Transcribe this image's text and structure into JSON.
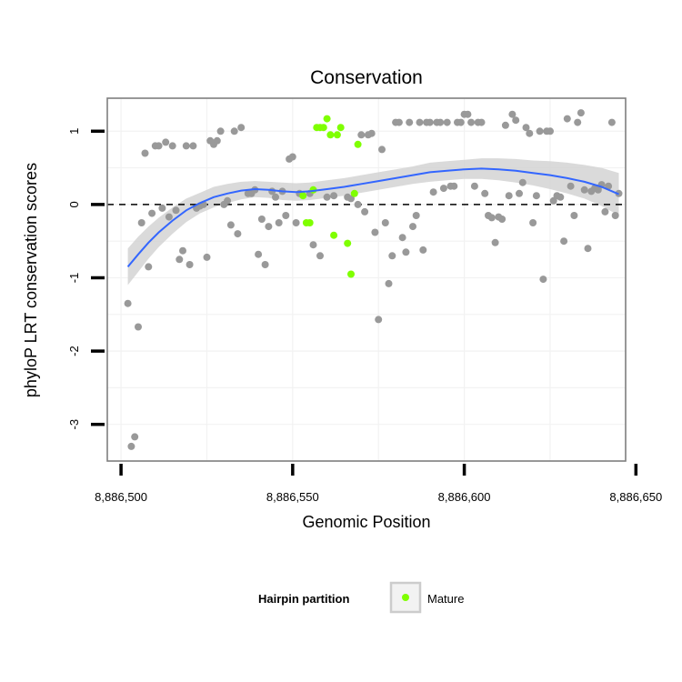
{
  "chart_data": {
    "type": "scatter",
    "title": "Conservation",
    "xlabel": "Genomic Position",
    "ylabel": "phyloP LRT conservation scores",
    "xlim": [
      8886496,
      8886647
    ],
    "ylim": [
      -3.5,
      1.45
    ],
    "x_ticks": [
      8886500,
      8886550,
      8886600,
      8886650
    ],
    "x_tick_labels": [
      "8,886,500",
      "8,886,550",
      "8,886,600",
      "8,886,650"
    ],
    "y_ticks": [
      -3,
      -2,
      -1,
      0,
      1
    ],
    "y_tick_labels": [
      "-3",
      "-2",
      "-1",
      "0",
      "1"
    ],
    "reference_line": {
      "y": 0,
      "style": "dashed"
    },
    "grid": true,
    "legend": {
      "title": "Hairpin partition",
      "entries": [
        {
          "label": "Mature",
          "color": "#7fff00"
        }
      ],
      "placement": "bottom"
    },
    "colors": {
      "other": "#999999",
      "mature": "#7fff00",
      "smooth": "#3366ff",
      "band": "#d3d3d3",
      "panel_border": "#7f7f7f",
      "grid": "#f2f2f2"
    },
    "series": [
      {
        "group": "other",
        "points": [
          [
            8886502,
            -1.35
          ],
          [
            8886503,
            -3.3
          ],
          [
            8886504,
            -3.17
          ],
          [
            8886505,
            -1.67
          ],
          [
            8886506,
            -0.25
          ],
          [
            8886507,
            0.7
          ],
          [
            8886508,
            -0.85
          ],
          [
            8886509,
            -0.12
          ],
          [
            8886510,
            0.8
          ],
          [
            8886511,
            0.8
          ],
          [
            8886512,
            -0.05
          ],
          [
            8886513,
            0.85
          ],
          [
            8886514,
            -0.17
          ],
          [
            8886515,
            0.8
          ],
          [
            8886516,
            -0.08
          ],
          [
            8886517,
            -0.75
          ],
          [
            8886518,
            -0.63
          ],
          [
            8886519,
            0.8
          ],
          [
            8886520,
            -0.82
          ],
          [
            8886521,
            0.8
          ],
          [
            8886522,
            -0.05
          ],
          [
            8886523,
            -0.02
          ],
          [
            8886524,
            0.0
          ],
          [
            8886525,
            -0.72
          ],
          [
            8886526,
            0.87
          ],
          [
            8886527,
            0.82
          ],
          [
            8886528,
            0.87
          ],
          [
            8886529,
            1.0
          ],
          [
            8886530,
            0.0
          ],
          [
            8886531,
            0.05
          ],
          [
            8886532,
            -0.28
          ],
          [
            8886533,
            1.0
          ],
          [
            8886534,
            -0.4
          ],
          [
            8886535,
            1.05
          ],
          [
            8886537,
            0.15
          ],
          [
            8886538,
            0.15
          ],
          [
            8886539,
            0.2
          ],
          [
            8886540,
            -0.68
          ],
          [
            8886541,
            -0.2
          ],
          [
            8886542,
            -0.82
          ],
          [
            8886543,
            -0.3
          ],
          [
            8886544,
            0.18
          ],
          [
            8886545,
            0.1
          ],
          [
            8886546,
            -0.25
          ],
          [
            8886547,
            0.18
          ],
          [
            8886548,
            -0.15
          ],
          [
            8886549,
            0.62
          ],
          [
            8886550,
            0.65
          ],
          [
            8886551,
            -0.25
          ],
          [
            8886552,
            0.15
          ],
          [
            8886555,
            0.15
          ],
          [
            8886556,
            -0.55
          ],
          [
            8886558,
            -0.7
          ],
          [
            8886560,
            0.1
          ],
          [
            8886562,
            0.12
          ],
          [
            8886566,
            0.1
          ],
          [
            8886567,
            0.08
          ],
          [
            8886569,
            0.0
          ],
          [
            8886570,
            0.95
          ],
          [
            8886571,
            -0.1
          ],
          [
            8886572,
            0.95
          ],
          [
            8886573,
            0.97
          ],
          [
            8886574,
            -0.38
          ],
          [
            8886575,
            -1.57
          ],
          [
            8886576,
            0.75
          ],
          [
            8886577,
            -0.25
          ],
          [
            8886578,
            -1.08
          ],
          [
            8886579,
            -0.7
          ],
          [
            8886580,
            1.12
          ],
          [
            8886581,
            1.12
          ],
          [
            8886582,
            -0.45
          ],
          [
            8886583,
            -0.65
          ],
          [
            8886584,
            1.12
          ],
          [
            8886585,
            -0.3
          ],
          [
            8886586,
            -0.15
          ],
          [
            8886587,
            1.12
          ],
          [
            8886588,
            -0.62
          ],
          [
            8886589,
            1.12
          ],
          [
            8886590,
            1.12
          ],
          [
            8886591,
            0.17
          ],
          [
            8886592,
            1.12
          ],
          [
            8886593,
            1.12
          ],
          [
            8886594,
            0.22
          ],
          [
            8886595,
            1.12
          ],
          [
            8886596,
            0.25
          ],
          [
            8886597,
            0.25
          ],
          [
            8886598,
            1.12
          ],
          [
            8886599,
            1.12
          ],
          [
            8886600,
            1.23
          ],
          [
            8886601,
            1.23
          ],
          [
            8886602,
            1.12
          ],
          [
            8886603,
            0.25
          ],
          [
            8886604,
            1.12
          ],
          [
            8886605,
            1.12
          ],
          [
            8886606,
            0.15
          ],
          [
            8886607,
            -0.15
          ],
          [
            8886608,
            -0.18
          ],
          [
            8886609,
            -0.52
          ],
          [
            8886610,
            -0.17
          ],
          [
            8886611,
            -0.2
          ],
          [
            8886612,
            1.08
          ],
          [
            8886613,
            0.12
          ],
          [
            8886614,
            1.23
          ],
          [
            8886615,
            1.15
          ],
          [
            8886616,
            0.15
          ],
          [
            8886617,
            0.3
          ],
          [
            8886618,
            1.05
          ],
          [
            8886619,
            0.97
          ],
          [
            8886620,
            -0.25
          ],
          [
            8886621,
            0.12
          ],
          [
            8886622,
            1.0
          ],
          [
            8886623,
            -1.02
          ],
          [
            8886624,
            1.0
          ],
          [
            8886625,
            1.0
          ],
          [
            8886626,
            0.05
          ],
          [
            8886627,
            0.12
          ],
          [
            8886628,
            0.1
          ],
          [
            8886629,
            -0.5
          ],
          [
            8886630,
            1.17
          ],
          [
            8886631,
            0.25
          ],
          [
            8886632,
            -0.15
          ],
          [
            8886633,
            1.12
          ],
          [
            8886634,
            1.25
          ],
          [
            8886635,
            0.2
          ],
          [
            8886636,
            -0.6
          ],
          [
            8886637,
            0.18
          ],
          [
            8886638,
            0.22
          ],
          [
            8886639,
            0.2
          ],
          [
            8886640,
            0.27
          ],
          [
            8886641,
            -0.1
          ],
          [
            8886642,
            0.25
          ],
          [
            8886643,
            1.12
          ],
          [
            8886644,
            -0.15
          ],
          [
            8886645,
            0.15
          ]
        ]
      },
      {
        "group": "mature",
        "name": "Mature",
        "points": [
          [
            8886553,
            0.12
          ],
          [
            8886554,
            -0.25
          ],
          [
            8886555,
            -0.25
          ],
          [
            8886556,
            0.2
          ],
          [
            8886557,
            1.05
          ],
          [
            8886558,
            1.05
          ],
          [
            8886559,
            1.05
          ],
          [
            8886560,
            1.17
          ],
          [
            8886561,
            0.95
          ],
          [
            8886562,
            -0.42
          ],
          [
            8886563,
            0.95
          ],
          [
            8886564,
            1.05
          ],
          [
            8886566,
            -0.53
          ],
          [
            8886567,
            -0.95
          ],
          [
            8886568,
            0.15
          ],
          [
            8886569,
            0.82
          ]
        ]
      }
    ],
    "smooth": {
      "x": [
        8886502,
        8886505,
        8886508,
        8886511,
        8886515,
        8886519,
        8886523,
        8886527,
        8886531,
        8886535,
        8886539,
        8886543,
        8886547,
        8886551,
        8886555,
        8886560,
        8886565,
        8886570,
        8886575,
        8886580,
        8886585,
        8886590,
        8886595,
        8886600,
        8886605,
        8886610,
        8886615,
        8886620,
        8886625,
        8886630,
        8886635,
        8886640,
        8886645
      ],
      "y": [
        -0.85,
        -0.68,
        -0.52,
        -0.38,
        -0.22,
        -0.08,
        0.02,
        0.1,
        0.15,
        0.19,
        0.21,
        0.2,
        0.18,
        0.17,
        0.18,
        0.21,
        0.24,
        0.28,
        0.32,
        0.36,
        0.4,
        0.44,
        0.46,
        0.48,
        0.49,
        0.48,
        0.46,
        0.43,
        0.4,
        0.36,
        0.31,
        0.24,
        0.14
      ],
      "lower": [
        -1.1,
        -0.92,
        -0.74,
        -0.58,
        -0.4,
        -0.24,
        -0.12,
        -0.04,
        0.02,
        0.07,
        0.1,
        0.09,
        0.06,
        0.05,
        0.06,
        0.09,
        0.12,
        0.16,
        0.2,
        0.24,
        0.28,
        0.31,
        0.33,
        0.35,
        0.35,
        0.33,
        0.3,
        0.26,
        0.21,
        0.15,
        0.08,
        -0.02,
        -0.15
      ],
      "upper": [
        -0.6,
        -0.44,
        -0.3,
        -0.18,
        -0.04,
        0.08,
        0.16,
        0.24,
        0.28,
        0.31,
        0.32,
        0.31,
        0.3,
        0.29,
        0.3,
        0.33,
        0.36,
        0.4,
        0.44,
        0.48,
        0.52,
        0.57,
        0.59,
        0.61,
        0.63,
        0.63,
        0.62,
        0.6,
        0.59,
        0.57,
        0.54,
        0.5,
        0.43
      ]
    }
  }
}
